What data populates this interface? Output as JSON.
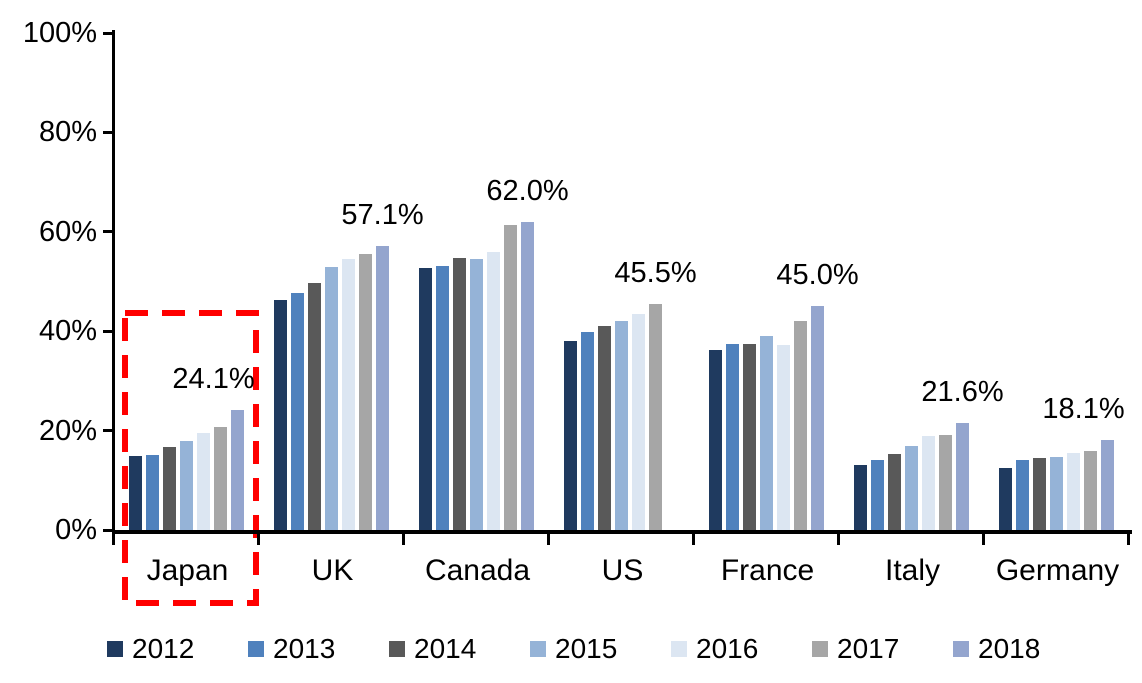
{
  "chart_data": {
    "type": "bar",
    "title": "",
    "xlabel": "",
    "ylabel": "",
    "categories": [
      "Japan",
      "UK",
      "Canada",
      "US",
      "France",
      "Italy",
      "Germany"
    ],
    "series": [
      {
        "name": "2012",
        "color": "#1F3A5F",
        "values": [
          14.8,
          46.2,
          52.8,
          38.1,
          36.3,
          13.0,
          12.5
        ]
      },
      {
        "name": "2013",
        "color": "#4F81BD",
        "values": [
          15.0,
          47.7,
          53.2,
          39.8,
          37.4,
          14.0,
          14.0
        ]
      },
      {
        "name": "2014",
        "color": "#595959",
        "values": [
          16.6,
          49.7,
          54.7,
          41.1,
          37.4,
          15.3,
          14.4
        ]
      },
      {
        "name": "2015",
        "color": "#95B3D7",
        "values": [
          18.0,
          53.0,
          54.5,
          42.0,
          39.1,
          16.9,
          14.7
        ]
      },
      {
        "name": "2016",
        "color": "#DCE6F2",
        "values": [
          19.6,
          54.5,
          55.9,
          43.4,
          37.2,
          18.9,
          15.4
        ]
      },
      {
        "name": "2017",
        "color": "#A6A6A6",
        "values": [
          20.8,
          55.6,
          61.4,
          45.5,
          42.1,
          19.1,
          15.9
        ]
      },
      {
        "name": "2018",
        "color": "#94A5CE",
        "values": [
          24.1,
          57.1,
          62.0,
          null,
          45.0,
          21.6,
          18.1
        ]
      }
    ],
    "annotations": [
      {
        "category": "Japan",
        "text": "24.1%"
      },
      {
        "category": "UK",
        "text": "57.1%"
      },
      {
        "category": "Canada",
        "text": "62.0%"
      },
      {
        "category": "US",
        "text": "45.5%"
      },
      {
        "category": "France",
        "text": "45.0%"
      },
      {
        "category": "Italy",
        "text": "21.6%"
      },
      {
        "category": "Germany",
        "text": "18.1%"
      }
    ],
    "y_axis": {
      "tick_labels": [
        "0%",
        "20%",
        "40%",
        "60%",
        "80%",
        "100%"
      ],
      "min": 0,
      "max": 100,
      "grid": false
    },
    "legend": {
      "position": "bottom",
      "entries": [
        "2012",
        "2013",
        "2014",
        "2015",
        "2016",
        "2017",
        "2018"
      ]
    },
    "highlight": {
      "category": "Japan",
      "shape": "dashed-rectangle",
      "color": "#FF0000"
    }
  }
}
